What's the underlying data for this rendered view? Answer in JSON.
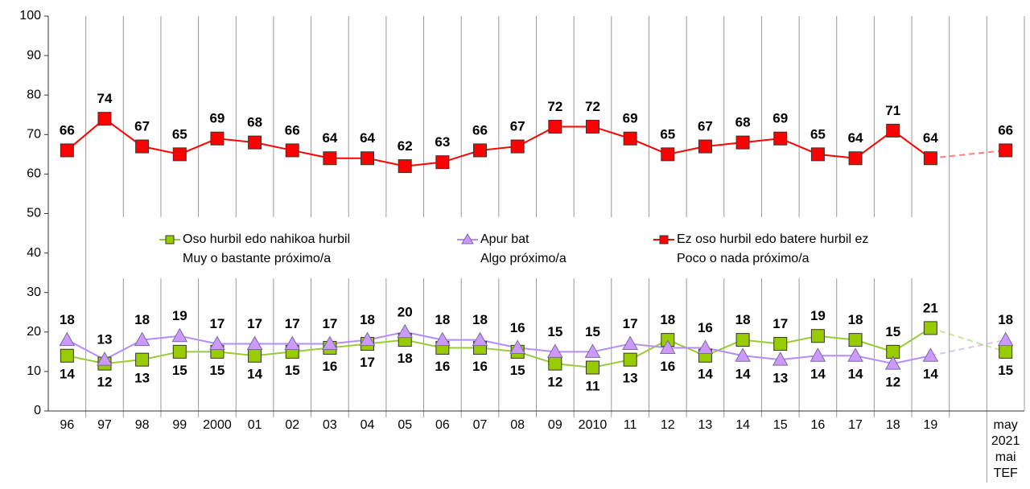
{
  "chart_data": {
    "type": "line",
    "categories": [
      "96",
      "97",
      "98",
      "99",
      "2000",
      "01",
      "02",
      "03",
      "04",
      "05",
      "06",
      "07",
      "08",
      "09",
      "2010",
      "11",
      "12",
      "13",
      "14",
      "15",
      "16",
      "17",
      "18",
      "19",
      null,
      "may 2021 mai TEF"
    ],
    "series": [
      {
        "name": [
          "Oso hurbil edo nahikoa hurbil",
          "Muy o bastante próximo/a"
        ],
        "color": "#99cc00",
        "line_color": "#99cc33",
        "marker": "square",
        "values": [
          14,
          12,
          13,
          15,
          15,
          14,
          15,
          16,
          17,
          18,
          16,
          16,
          15,
          12,
          11,
          13,
          18,
          14,
          18,
          17,
          19,
          18,
          15,
          21,
          null,
          15
        ]
      },
      {
        "name": [
          "Apur bat",
          "Algo próximo/a"
        ],
        "color": "#cc99ff",
        "line_color": "#b38cff",
        "marker": "triangle",
        "values": [
          18,
          13,
          18,
          19,
          17,
          17,
          17,
          17,
          18,
          20,
          18,
          18,
          16,
          15,
          15,
          17,
          16,
          16,
          14,
          13,
          14,
          14,
          12,
          14,
          null,
          18
        ]
      },
      {
        "name": [
          "Ez oso hurbil edo batere hurbil ez",
          "Poco o nada próximo/a"
        ],
        "color": "#ff0000",
        "line_color": "#ff0000",
        "marker": "square",
        "values": [
          66,
          74,
          67,
          65,
          69,
          68,
          66,
          64,
          64,
          62,
          63,
          66,
          67,
          72,
          72,
          69,
          65,
          67,
          68,
          69,
          65,
          64,
          71,
          64,
          null,
          66
        ]
      }
    ],
    "ylim": [
      0,
      100
    ],
    "yticks": [
      0,
      10,
      20,
      30,
      40,
      50,
      60,
      70,
      80,
      90,
      100
    ],
    "grid": "vertical"
  }
}
